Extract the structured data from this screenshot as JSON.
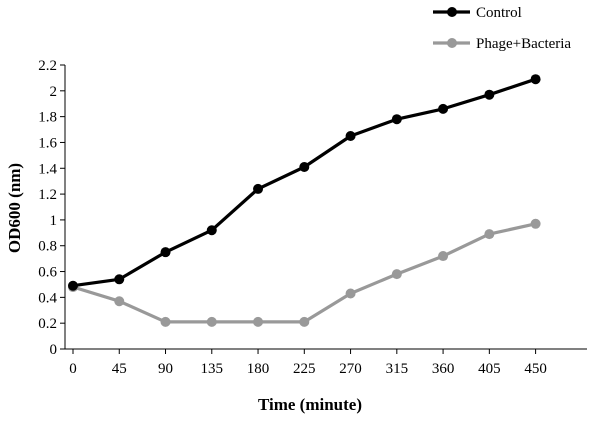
{
  "chart_data": {
    "type": "line",
    "xlabel": "Time (minute)",
    "ylabel": "OD600 (nm)",
    "categories": [
      "0",
      "45",
      "90",
      "135",
      "180",
      "225",
      "270",
      "315",
      "360",
      "405",
      "450"
    ],
    "x": [
      0,
      45,
      90,
      135,
      180,
      225,
      270,
      315,
      360,
      405,
      450
    ],
    "ylim": [
      0,
      2.2
    ],
    "yticks": [
      "0",
      "0.2",
      "0.4",
      "0.6",
      "0.8",
      "1",
      "1.2",
      "1.4",
      "1.6",
      "1.8",
      "2",
      "2.2"
    ],
    "grid": false,
    "legend_position": "top-right",
    "series": [
      {
        "name": "Control",
        "color": "#000000",
        "values": [
          0.49,
          0.54,
          0.75,
          0.92,
          1.24,
          1.41,
          1.65,
          1.78,
          1.86,
          1.97,
          2.09
        ]
      },
      {
        "name": "Phage+Bacteria",
        "color": "#999999",
        "values": [
          0.48,
          0.37,
          0.21,
          0.21,
          0.21,
          0.21,
          0.43,
          0.58,
          0.72,
          0.89,
          0.97
        ]
      }
    ]
  }
}
